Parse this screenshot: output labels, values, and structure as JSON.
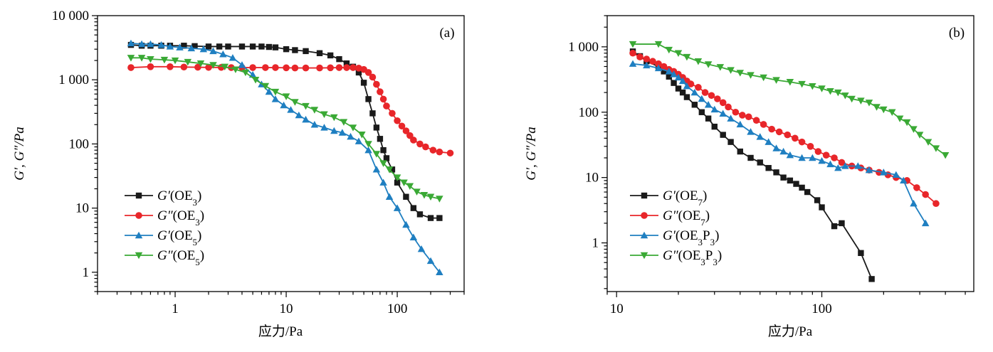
{
  "colors": {
    "black": "#1a1a1a",
    "red": "#e8262a",
    "blue": "#1f7fc1",
    "green": "#3aa935"
  },
  "chart_data": [
    {
      "type": "line",
      "panel_label": "(a)",
      "xscale": "log",
      "yscale": "log",
      "xlim": [
        0.2,
        400
      ],
      "ylim": [
        0.5,
        10000
      ],
      "xlabel": "应力/Pa",
      "ylabel": "G′, G″/Pa",
      "x_ticks": [
        "1",
        "10",
        "100"
      ],
      "y_ticks": [
        "1",
        "10",
        "100",
        "1 000",
        "10 000"
      ],
      "legend_position": "bottom-left",
      "series": [
        {
          "name": "G′(OE3)",
          "color": "#1a1a1a",
          "marker": "square",
          "x": [
            0.4,
            0.5,
            0.6,
            0.75,
            0.9,
            1.2,
            1.5,
            2,
            2.5,
            3,
            4,
            5,
            6,
            7,
            8,
            10,
            12,
            15,
            20,
            25,
            30,
            35,
            40,
            45,
            50,
            55,
            60,
            65,
            70,
            75,
            80,
            90,
            100,
            120,
            140,
            160,
            200,
            240
          ],
          "y": [
            3500,
            3400,
            3400,
            3400,
            3400,
            3400,
            3350,
            3300,
            3300,
            3300,
            3300,
            3300,
            3300,
            3250,
            3200,
            3000,
            2900,
            2800,
            2600,
            2400,
            2100,
            1800,
            1600,
            1300,
            900,
            500,
            300,
            180,
            120,
            80,
            60,
            40,
            25,
            15,
            10,
            8,
            7,
            7
          ]
        },
        {
          "name": "G″(OE3)",
          "color": "#e8262a",
          "marker": "circle",
          "x": [
            0.4,
            0.6,
            0.9,
            1.2,
            1.6,
            2,
            2.6,
            3.2,
            4,
            5,
            6.5,
            8,
            10,
            12,
            15,
            20,
            25,
            30,
            35,
            40,
            45,
            50,
            55,
            60,
            65,
            70,
            75,
            80,
            90,
            100,
            110,
            120,
            130,
            140,
            160,
            180,
            210,
            240,
            300
          ],
          "y": [
            1550,
            1600,
            1600,
            1580,
            1570,
            1560,
            1560,
            1550,
            1550,
            1550,
            1550,
            1550,
            1540,
            1530,
            1530,
            1530,
            1540,
            1550,
            1550,
            1550,
            1520,
            1450,
            1300,
            1100,
            850,
            650,
            500,
            390,
            300,
            230,
            190,
            160,
            135,
            115,
            100,
            90,
            80,
            75,
            72
          ]
        },
        {
          "name": "G′(OE5)",
          "color": "#1f7fc1",
          "marker": "triangle-up",
          "x": [
            0.4,
            0.5,
            0.6,
            0.75,
            0.9,
            1.1,
            1.4,
            1.8,
            2.2,
            2.7,
            3.3,
            4,
            5,
            6,
            7,
            8,
            9.5,
            11,
            13,
            15,
            18,
            22,
            27,
            32,
            38,
            45,
            55,
            65,
            75,
            85,
            100,
            120,
            140,
            165,
            200,
            240
          ],
          "y": [
            3700,
            3600,
            3600,
            3500,
            3300,
            3200,
            3100,
            3000,
            2800,
            2500,
            2200,
            1700,
            1200,
            850,
            650,
            500,
            400,
            340,
            280,
            240,
            200,
            180,
            160,
            150,
            130,
            110,
            80,
            40,
            25,
            15,
            10,
            5.5,
            3.5,
            2.3,
            1.5,
            1
          ]
        },
        {
          "name": "G″(OE5)",
          "color": "#3aa935",
          "marker": "triangle-down",
          "x": [
            0.4,
            0.5,
            0.6,
            0.8,
            1,
            1.3,
            1.7,
            2.2,
            2.8,
            3.5,
            4.3,
            5.3,
            6.5,
            8,
            10,
            12,
            15,
            18,
            22,
            27,
            33,
            40,
            48,
            55,
            65,
            75,
            85,
            100,
            115,
            130,
            150,
            175,
            200,
            240
          ],
          "y": [
            2200,
            2200,
            2100,
            2050,
            2000,
            1900,
            1800,
            1700,
            1600,
            1450,
            1300,
            1000,
            800,
            650,
            550,
            450,
            390,
            340,
            290,
            260,
            220,
            180,
            140,
            100,
            70,
            50,
            40,
            30,
            25,
            22,
            18,
            16,
            15,
            14
          ]
        }
      ]
    },
    {
      "type": "line",
      "panel_label": "(b)",
      "xscale": "log",
      "yscale": "log",
      "xlim": [
        9,
        550
      ],
      "ylim": [
        0.18,
        3000
      ],
      "xlabel": "应力/Pa",
      "ylabel": "G′, G″/Pa",
      "x_ticks": [
        "10",
        "100"
      ],
      "y_ticks": [
        "1",
        "10",
        "100",
        "1 000"
      ],
      "legend_position": "bottom-left",
      "series": [
        {
          "name": "G′(OE7)",
          "color": "#1a1a1a",
          "marker": "square",
          "x": [
            12,
            13,
            14,
            16,
            17,
            18,
            19,
            20,
            21,
            22,
            24,
            26,
            28,
            30,
            33,
            36,
            40,
            45,
            50,
            55,
            60,
            65,
            70,
            75,
            80,
            85,
            95,
            100,
            115,
            125,
            155,
            175
          ],
          "y": [
            850,
            720,
            600,
            500,
            420,
            350,
            280,
            230,
            200,
            170,
            130,
            100,
            80,
            60,
            45,
            35,
            25,
            20,
            17,
            14,
            12,
            10,
            9,
            8,
            7,
            6,
            4.5,
            3.5,
            1.8,
            2,
            0.7,
            0.28
          ]
        },
        {
          "name": "G″(OE7)",
          "color": "#e8262a",
          "marker": "circle",
          "x": [
            12,
            13,
            14,
            15,
            16,
            17,
            18,
            19,
            20,
            21,
            22,
            23,
            25,
            27,
            29,
            31,
            33,
            35,
            38,
            41,
            44,
            48,
            52,
            57,
            62,
            68,
            74,
            80,
            88,
            96,
            105,
            115,
            125,
            140,
            155,
            170,
            190,
            210,
            230,
            260,
            290,
            320,
            360
          ],
          "y": [
            800,
            700,
            650,
            600,
            550,
            500,
            450,
            420,
            380,
            340,
            300,
            270,
            240,
            200,
            180,
            160,
            140,
            120,
            100,
            90,
            85,
            75,
            65,
            55,
            50,
            45,
            40,
            35,
            30,
            25,
            22,
            20,
            17,
            15,
            14,
            13,
            12,
            11,
            10,
            9,
            7,
            5.5,
            4
          ]
        },
        {
          "name": "G′(OE3P3)",
          "color": "#1f7fc1",
          "marker": "triangle-up",
          "x": [
            12,
            14,
            16,
            18,
            19,
            20,
            21,
            22,
            24,
            26,
            28,
            30,
            33,
            36,
            40,
            45,
            50,
            55,
            60,
            65,
            70,
            80,
            90,
            100,
            110,
            120,
            130,
            150,
            170,
            200,
            230,
            250,
            280,
            320
          ],
          "y": [
            550,
            520,
            470,
            420,
            380,
            340,
            300,
            250,
            200,
            160,
            130,
            110,
            95,
            80,
            65,
            50,
            42,
            35,
            28,
            25,
            22,
            20,
            20,
            18,
            16,
            14,
            15,
            15,
            13,
            12,
            11,
            9,
            4,
            2
          ]
        },
        {
          "name": "G″(OE3P3)",
          "color": "#3aa935",
          "marker": "triangle-down",
          "x": [
            12,
            16,
            18,
            20,
            22,
            25,
            28,
            32,
            36,
            40,
            45,
            52,
            60,
            70,
            80,
            90,
            100,
            110,
            120,
            130,
            140,
            155,
            170,
            185,
            200,
            220,
            240,
            260,
            280,
            300,
            330,
            360,
            400
          ],
          "y": [
            1100,
            1100,
            900,
            800,
            700,
            600,
            540,
            490,
            440,
            400,
            370,
            340,
            310,
            290,
            270,
            250,
            230,
            210,
            200,
            180,
            160,
            150,
            140,
            120,
            110,
            100,
            80,
            70,
            55,
            45,
            35,
            28,
            22
          ]
        }
      ]
    }
  ]
}
